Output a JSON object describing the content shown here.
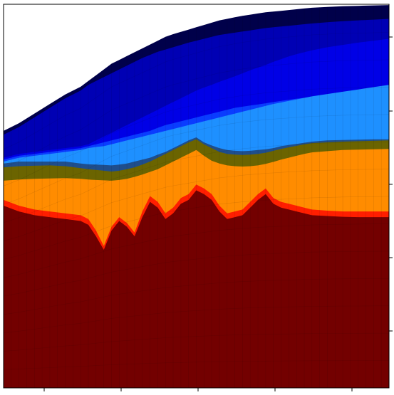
{
  "chart_data": {
    "type": "area",
    "title": "",
    "xlabel": "",
    "ylabel": "",
    "xlim": [
      0,
      100
    ],
    "ylim": [
      0,
      100
    ],
    "grid": true,
    "legend": "none",
    "x": [
      0,
      4,
      8,
      12,
      16,
      20,
      22,
      24,
      26,
      28,
      30,
      32,
      34,
      36,
      38,
      40,
      42,
      44,
      46,
      48,
      50,
      52,
      54,
      56,
      58,
      60,
      62,
      64,
      66,
      68,
      70,
      72,
      74,
      76,
      78,
      80,
      84,
      88,
      92,
      96,
      100
    ],
    "series": [
      {
        "color": "#00004a",
        "values": [
          67,
          69,
          71.5,
          74,
          76.5,
          78.5,
          80,
          81.5,
          83,
          84.5,
          85.5,
          86.5,
          87.5,
          88.5,
          89.5,
          90.5,
          91.5,
          92.2,
          92.8,
          93.4,
          94,
          94.6,
          95.2,
          95.8,
          96.2,
          96.6,
          97,
          97.3,
          97.6,
          97.9,
          98.1,
          98.3,
          98.5,
          98.7,
          98.9,
          99.1,
          99.3,
          99.5,
          99.6,
          99.7,
          99.8
        ]
      },
      {
        "color": "#0000b4",
        "values": [
          66,
          68,
          70.5,
          73,
          75.5,
          77.5,
          79,
          80,
          81,
          82,
          83,
          84,
          85,
          86,
          86.8,
          87.6,
          88.2,
          88.8,
          89.4,
          90,
          90.5,
          91,
          91.5,
          92,
          92.3,
          92.6,
          92.9,
          93.2,
          93.5,
          93.8,
          94,
          94.2,
          94.4,
          94.6,
          94.8,
          95,
          95.3,
          95.6,
          95.8,
          96,
          96.2
        ]
      },
      {
        "color": "#0000e6",
        "values": [
          60,
          61,
          61.5,
          62,
          62.5,
          63,
          63.5,
          64.5,
          65.5,
          66.5,
          67.5,
          68.5,
          69.5,
          70.5,
          71.5,
          72.5,
          73.5,
          74.5,
          75.5,
          76.5,
          77.5,
          78.3,
          79,
          79.8,
          80.5,
          81.2,
          82,
          82.8,
          83.5,
          84.2,
          85,
          85.7,
          86.4,
          87,
          87.5,
          88,
          88.8,
          89.4,
          90,
          90.5,
          91
        ]
      },
      {
        "color": "#0a3cff",
        "values": [
          59.5,
          60.5,
          61,
          61.5,
          62,
          62.5,
          63,
          63.5,
          64,
          64.5,
          65,
          65.5,
          66,
          66.5,
          67,
          67.8,
          68.5,
          69,
          69.5,
          70,
          70.5,
          71,
          71.5,
          72,
          72.5,
          73,
          73.3,
          73.6,
          73.9,
          74.2,
          74.5,
          74.8,
          75.1,
          75.4,
          75.6,
          75.8,
          76.2,
          76.6,
          77,
          77.3,
          77.6
        ]
      },
      {
        "color": "#1e90ff",
        "values": [
          59,
          60,
          60.5,
          61,
          61.5,
          62,
          62.5,
          62.8,
          63,
          63.5,
          64,
          64.5,
          65,
          65.5,
          66,
          66.5,
          67,
          67.5,
          68,
          68.5,
          69,
          69.5,
          70,
          70.5,
          71,
          71.5,
          72,
          72.5,
          73,
          73.5,
          74,
          74.4,
          74.8,
          75.2,
          75.6,
          76,
          76.6,
          77.2,
          77.8,
          78.4,
          79
        ]
      },
      {
        "color": "#1f4e8c",
        "values": [
          58.5,
          59,
          59,
          59,
          59,
          58.5,
          58.3,
          58.2,
          58.1,
          58,
          58.2,
          58.5,
          59,
          59.5,
          60,
          60.8,
          61.5,
          62.5,
          63.5,
          64.5,
          65.3,
          64,
          63.2,
          62.5,
          62,
          61.8,
          61.7,
          61.8,
          62,
          62.2,
          62.5,
          63,
          63.3,
          63.6,
          63.9,
          64.2,
          64.5,
          64.6,
          64.7,
          64.8,
          64.8
        ]
      },
      {
        "color": "#6b6400",
        "values": [
          57.5,
          57.8,
          57.9,
          58,
          57.8,
          57.3,
          57,
          56.8,
          56.6,
          56.4,
          56.6,
          57,
          57.5,
          58.2,
          59,
          60,
          61,
          62,
          63,
          64,
          64.8,
          63.5,
          62.5,
          61.5,
          61,
          60.8,
          60.7,
          60.8,
          61,
          61.3,
          61.8,
          62.3,
          62.7,
          63.1,
          63.5,
          63.8,
          64,
          64.2,
          64.3,
          64.4,
          64.5
        ]
      },
      {
        "color": "#ff8c00",
        "values": [
          54,
          54.3,
          54.5,
          54.6,
          54.7,
          54.5,
          54.3,
          54.2,
          54.1,
          54,
          54.2,
          54.5,
          55,
          55.6,
          56.3,
          57,
          58,
          59,
          60,
          61,
          62,
          60.5,
          59.2,
          58.5,
          58,
          57.8,
          57.7,
          57.8,
          58,
          58.4,
          58.9,
          59.5,
          60,
          60.5,
          61,
          61.4,
          61.7,
          62,
          62.1,
          62.2,
          62.3
        ]
      },
      {
        "color": "#ff1e00",
        "values": [
          49,
          47.5,
          46.5,
          46,
          45.5,
          45,
          44,
          41,
          37,
          42,
          44.5,
          43,
          40.5,
          46,
          50,
          48.5,
          45.5,
          47,
          49.5,
          50.5,
          53,
          52,
          50.5,
          47.5,
          45.5,
          46,
          46.5,
          48.5,
          50.5,
          52,
          49.5,
          48.5,
          48,
          47.5,
          47,
          46.5,
          46.2,
          46,
          46,
          46,
          46
        ]
      },
      {
        "color": "#730000",
        "values": [
          47.5,
          46,
          45,
          44.5,
          44,
          43.5,
          42.5,
          39.5,
          36,
          41,
          43.5,
          42,
          39.5,
          44.5,
          48.5,
          47,
          44,
          45.5,
          48,
          49,
          51.5,
          50.5,
          49,
          46,
          44,
          44.5,
          45,
          47,
          49,
          50.5,
          48,
          47,
          46.5,
          46,
          45.5,
          45,
          44.8,
          44.6,
          44.5,
          44.5,
          44.5
        ]
      }
    ]
  }
}
